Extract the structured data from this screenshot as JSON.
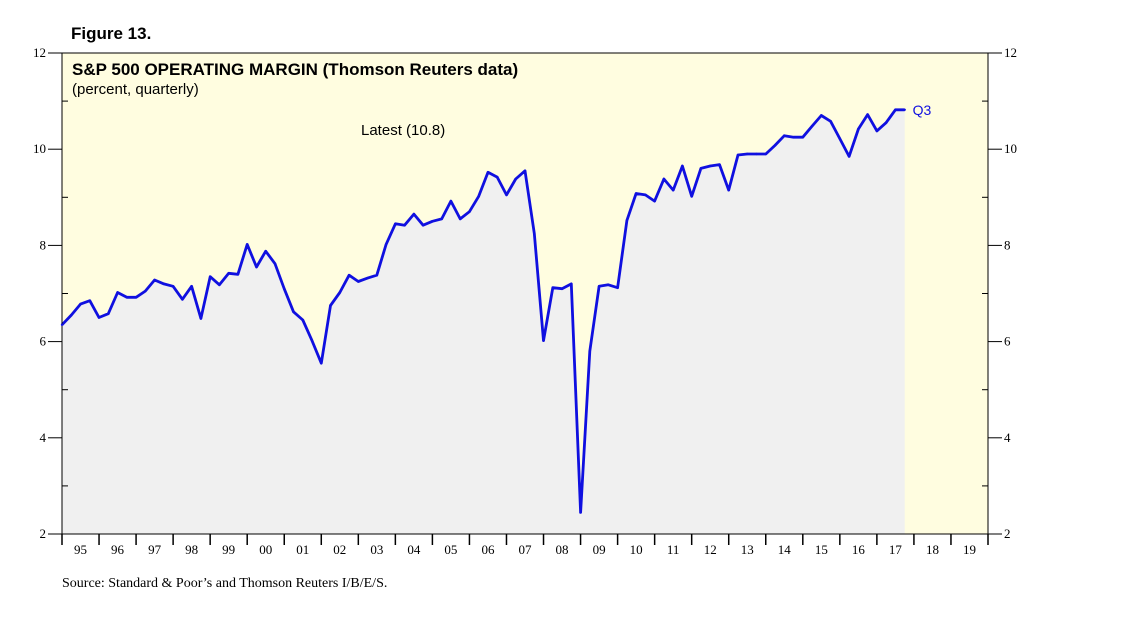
{
  "figure_label": "Figure 13.",
  "source": "Source: Standard & Poor’s and Thomson Reuters I/B/E/S.",
  "colors": {
    "line": "#1010e0",
    "background": "#fffde0",
    "area": "#f0f0f0"
  },
  "chart_data": {
    "type": "line",
    "title": "S&P 500 OPERATING MARGIN (Thomson Reuters data)",
    "subtitle": "(percent, quarterly)",
    "annotation": "Latest (10.8)",
    "end_label": "Q3",
    "ylim": [
      2,
      12
    ],
    "y_ticks": [
      "2",
      "4",
      "6",
      "8",
      "10",
      "12"
    ],
    "x_range": [
      1995,
      2020
    ],
    "x_tick_labels": [
      "95",
      "96",
      "97",
      "98",
      "99",
      "00",
      "01",
      "02",
      "03",
      "04",
      "05",
      "06",
      "07",
      "08",
      "09",
      "10",
      "11",
      "12",
      "13",
      "14",
      "15",
      "16",
      "17",
      "18",
      "19"
    ],
    "grid": false,
    "series": [
      {
        "values": [
          [
            1995.0,
            6.35
          ],
          [
            1995.25,
            6.55
          ],
          [
            1995.5,
            6.78
          ],
          [
            1995.75,
            6.85
          ],
          [
            1996.0,
            6.5
          ],
          [
            1996.25,
            6.58
          ],
          [
            1996.5,
            7.02
          ],
          [
            1996.75,
            6.92
          ],
          [
            1997.0,
            6.92
          ],
          [
            1997.25,
            7.05
          ],
          [
            1997.5,
            7.28
          ],
          [
            1997.75,
            7.2
          ],
          [
            1998.0,
            7.15
          ],
          [
            1998.25,
            6.88
          ],
          [
            1998.5,
            7.15
          ],
          [
            1998.75,
            6.48
          ],
          [
            1999.0,
            7.35
          ],
          [
            1999.25,
            7.18
          ],
          [
            1999.5,
            7.42
          ],
          [
            1999.75,
            7.4
          ],
          [
            2000.0,
            8.02
          ],
          [
            2000.25,
            7.55
          ],
          [
            2000.5,
            7.88
          ],
          [
            2000.75,
            7.62
          ],
          [
            2001.0,
            7.1
          ],
          [
            2001.25,
            6.62
          ],
          [
            2001.5,
            6.45
          ],
          [
            2001.75,
            6.02
          ],
          [
            2002.0,
            5.55
          ],
          [
            2002.25,
            6.75
          ],
          [
            2002.5,
            7.02
          ],
          [
            2002.75,
            7.38
          ],
          [
            2003.0,
            7.25
          ],
          [
            2003.25,
            7.32
          ],
          [
            2003.5,
            7.38
          ],
          [
            2003.75,
            8.02
          ],
          [
            2004.0,
            8.45
          ],
          [
            2004.25,
            8.42
          ],
          [
            2004.5,
            8.65
          ],
          [
            2004.75,
            8.42
          ],
          [
            2005.0,
            8.5
          ],
          [
            2005.25,
            8.55
          ],
          [
            2005.5,
            8.92
          ],
          [
            2005.75,
            8.55
          ],
          [
            2006.0,
            8.7
          ],
          [
            2006.25,
            9.02
          ],
          [
            2006.5,
            9.52
          ],
          [
            2006.75,
            9.42
          ],
          [
            2007.0,
            9.05
          ],
          [
            2007.25,
            9.38
          ],
          [
            2007.5,
            9.55
          ],
          [
            2007.75,
            8.25
          ],
          [
            2008.0,
            6.02
          ],
          [
            2008.25,
            7.12
          ],
          [
            2008.5,
            7.1
          ],
          [
            2008.75,
            7.2
          ],
          [
            2009.0,
            2.45
          ],
          [
            2009.25,
            5.8
          ],
          [
            2009.5,
            7.15
          ],
          [
            2009.75,
            7.18
          ],
          [
            2010.0,
            7.12
          ],
          [
            2010.25,
            8.52
          ],
          [
            2010.5,
            9.08
          ],
          [
            2010.75,
            9.05
          ],
          [
            2011.0,
            8.92
          ],
          [
            2011.25,
            9.38
          ],
          [
            2011.5,
            9.15
          ],
          [
            2011.75,
            9.65
          ],
          [
            2012.0,
            9.02
          ],
          [
            2012.25,
            9.6
          ],
          [
            2012.5,
            9.65
          ],
          [
            2012.75,
            9.68
          ],
          [
            2013.0,
            9.15
          ],
          [
            2013.25,
            9.88
          ],
          [
            2013.5,
            9.9
          ],
          [
            2013.75,
            9.9
          ],
          [
            2014.0,
            9.9
          ],
          [
            2014.25,
            10.08
          ],
          [
            2014.5,
            10.28
          ],
          [
            2014.75,
            10.25
          ],
          [
            2015.0,
            10.25
          ],
          [
            2015.25,
            10.48
          ],
          [
            2015.5,
            10.7
          ],
          [
            2015.75,
            10.58
          ],
          [
            2016.0,
            10.22
          ],
          [
            2016.25,
            9.85
          ],
          [
            2016.5,
            10.42
          ],
          [
            2016.75,
            10.72
          ],
          [
            2017.0,
            10.38
          ],
          [
            2017.25,
            10.55
          ],
          [
            2017.5,
            10.82
          ],
          [
            2017.75,
            10.82
          ]
        ]
      }
    ]
  }
}
